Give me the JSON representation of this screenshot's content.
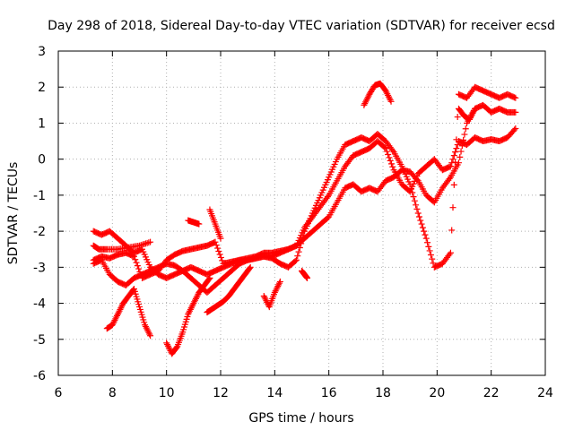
{
  "chart_data": {
    "type": "scatter",
    "title": "Day 298 of 2018, Sidereal Day-to-day VTEC variation (SDTVAR) for receiver ecsd",
    "xlabel": "GPS time / hours",
    "ylabel": "SDTVAR / TECUs",
    "xlim": [
      6,
      24
    ],
    "ylim": [
      -6,
      3
    ],
    "xticks": [
      "6",
      "8",
      "10",
      "12",
      "14",
      "16",
      "18",
      "20",
      "22",
      "24"
    ],
    "yticks": [
      "-6",
      "-5",
      "-4",
      "-3",
      "-2",
      "-1",
      "0",
      "1",
      "2",
      "3"
    ],
    "grid": true,
    "marker": "+",
    "series_color": "#ff0000",
    "series": [
      {
        "x": [
          7.3,
          7.6,
          7.9,
          8.2,
          8.5,
          8.8,
          9.1,
          9.4,
          9.7,
          10.0,
          10.3,
          10.6,
          10.9,
          11.2,
          11.5,
          11.8,
          12.1,
          12.4,
          12.7,
          13.0,
          13.3,
          13.6,
          13.9,
          14.2,
          14.5,
          14.8,
          15.1,
          15.4,
          15.7,
          16.0,
          16.3,
          16.6,
          16.9,
          17.2,
          17.5,
          17.8,
          18.1,
          18.4,
          18.7,
          19.0,
          19.3,
          19.6,
          19.9,
          20.2,
          20.5,
          20.8,
          21.1,
          21.4,
          21.7,
          22.0,
          22.3,
          22.6,
          22.9
        ],
        "y": [
          -2.8,
          -2.7,
          -2.75,
          -2.65,
          -2.6,
          -2.7,
          -3.3,
          -3.2,
          -3.1,
          -2.8,
          -2.65,
          -2.55,
          -2.5,
          -2.45,
          -2.4,
          -2.3,
          -2.9,
          -2.85,
          -2.8,
          -2.75,
          -2.7,
          -2.6,
          -2.6,
          -2.55,
          -2.5,
          -2.4,
          -1.9,
          -1.6,
          -1.3,
          -1.0,
          -0.6,
          -0.2,
          0.1,
          0.2,
          0.3,
          0.5,
          0.3,
          -0.3,
          -0.7,
          -0.9,
          -0.4,
          -0.2,
          0.0,
          -0.3,
          -0.2,
          0.5,
          0.4,
          0.6,
          0.5,
          0.55,
          0.5,
          0.6,
          0.85
        ]
      },
      {
        "x": [
          7.3,
          7.6,
          7.9,
          8.2,
          8.5,
          8.8,
          9.1,
          9.4,
          9.7,
          10.0,
          10.3,
          10.6,
          10.9,
          11.2,
          11.5,
          11.8,
          12.1,
          12.4,
          12.7,
          13.0,
          13.3,
          13.6,
          13.9,
          14.2,
          14.5,
          14.8,
          15.1,
          15.4,
          15.7,
          16.0,
          16.3,
          16.6,
          16.9,
          17.2,
          17.5,
          17.8,
          18.1,
          18.4,
          18.7,
          19.0,
          19.3,
          19.6,
          19.9,
          20.2,
          20.5,
          20.8,
          21.1,
          21.4,
          21.7,
          22.0,
          22.3,
          22.6,
          22.9
        ],
        "y": [
          -2.9,
          -2.8,
          -3.2,
          -3.4,
          -3.5,
          -3.3,
          -3.2,
          -3.1,
          -3.0,
          -2.9,
          -2.95,
          -3.1,
          -3.3,
          -3.5,
          -3.7,
          -3.5,
          -3.3,
          -3.1,
          -2.9,
          -2.8,
          -2.75,
          -2.7,
          -2.7,
          -2.6,
          -2.5,
          -2.4,
          -2.2,
          -2.0,
          -1.8,
          -1.6,
          -1.2,
          -0.8,
          -0.7,
          -0.9,
          -0.8,
          -0.9,
          -0.6,
          -0.5,
          -0.3,
          -0.35,
          -0.6,
          -1.0,
          -1.2,
          -0.8,
          -0.5,
          -0.1,
          1.0,
          1.4,
          1.5,
          1.3,
          1.4,
          1.3,
          1.3
        ]
      },
      {
        "x": [
          7.3,
          7.6,
          7.9,
          8.2,
          8.5,
          8.8,
          9.1,
          9.4,
          9.7,
          10.0,
          10.3,
          10.6,
          10.9,
          11.2,
          11.5,
          11.8,
          12.1,
          12.4,
          12.7,
          13.0,
          13.3,
          13.6,
          13.9,
          14.2,
          14.5,
          14.8,
          15.1,
          15.4,
          15.7,
          16.0,
          16.3,
          16.6,
          16.9,
          17.2,
          17.5,
          17.8,
          18.1,
          18.4,
          18.7,
          19.0,
          19.3,
          19.6,
          19.9,
          20.2,
          20.5,
          20.8,
          21.1,
          21.4,
          21.7,
          22.0,
          22.3,
          22.6,
          22.9
        ],
        "y": [
          -2.0,
          -2.1,
          -2.0,
          -2.2,
          -2.4,
          -2.6,
          -2.5,
          -3.0,
          -3.2,
          -3.3,
          -3.2,
          -3.1,
          -3.0,
          -3.1,
          -3.2,
          -3.1,
          -3.0,
          -2.9,
          -2.8,
          -2.8,
          -2.75,
          -2.7,
          -2.75,
          -2.9,
          -3.0,
          -2.8,
          -2.0,
          -1.5,
          -1.0,
          -0.5,
          0.0,
          0.4,
          0.5,
          0.6,
          0.5,
          0.7,
          0.5,
          0.2,
          -0.2,
          -0.7,
          -1.5,
          -2.2,
          -3.0,
          -2.9,
          -2.6,
          1.8,
          1.7,
          2.0,
          1.9,
          1.8,
          1.7,
          1.8,
          1.7
        ]
      },
      {
        "x": [
          7.8,
          8.0,
          8.2,
          8.4,
          8.6,
          8.8,
          9.0,
          9.2,
          9.4
        ],
        "y": [
          -4.7,
          -4.6,
          -4.3,
          -4.0,
          -3.8,
          -3.6,
          -4.1,
          -4.6,
          -4.9
        ]
      },
      {
        "x": [
          10.0,
          10.2,
          10.4,
          10.6,
          10.8,
          11.0,
          11.2,
          11.4,
          11.6
        ],
        "y": [
          -5.1,
          -5.4,
          -5.2,
          -4.8,
          -4.3,
          -4.0,
          -3.7,
          -3.5,
          -3.3
        ]
      },
      {
        "x": [
          11.5,
          11.7,
          11.9,
          12.1,
          12.3,
          12.5,
          12.7,
          12.9,
          13.1
        ],
        "y": [
          -4.25,
          -4.15,
          -4.05,
          -3.95,
          -3.8,
          -3.6,
          -3.4,
          -3.2,
          -3.0
        ]
      },
      {
        "x": [
          11.6,
          11.8,
          12.0
        ],
        "y": [
          -1.4,
          -1.8,
          -2.2
        ]
      },
      {
        "x": [
          10.8,
          11.0,
          11.2
        ],
        "y": [
          -1.7,
          -1.75,
          -1.8
        ]
      },
      {
        "x": [
          13.6,
          13.8,
          14.0,
          14.2
        ],
        "y": [
          -3.8,
          -4.1,
          -3.7,
          -3.4
        ]
      },
      {
        "x": [
          15.0,
          15.1,
          15.2
        ],
        "y": [
          -3.1,
          -3.2,
          -3.3
        ]
      },
      {
        "x": [
          17.3,
          17.5,
          17.7,
          17.9,
          18.1,
          18.3
        ],
        "y": [
          1.5,
          1.8,
          2.05,
          2.1,
          1.9,
          1.6
        ]
      },
      {
        "x": [
          20.8,
          21.0,
          21.2,
          21.4
        ],
        "y": [
          1.4,
          1.2,
          1.1,
          1.4
        ]
      },
      {
        "x": [
          7.3,
          7.5,
          7.8,
          8.2,
          8.6,
          9.0,
          9.4
        ],
        "y": [
          -2.4,
          -2.5,
          -2.5,
          -2.5,
          -2.45,
          -2.4,
          -2.3
        ]
      }
    ]
  }
}
